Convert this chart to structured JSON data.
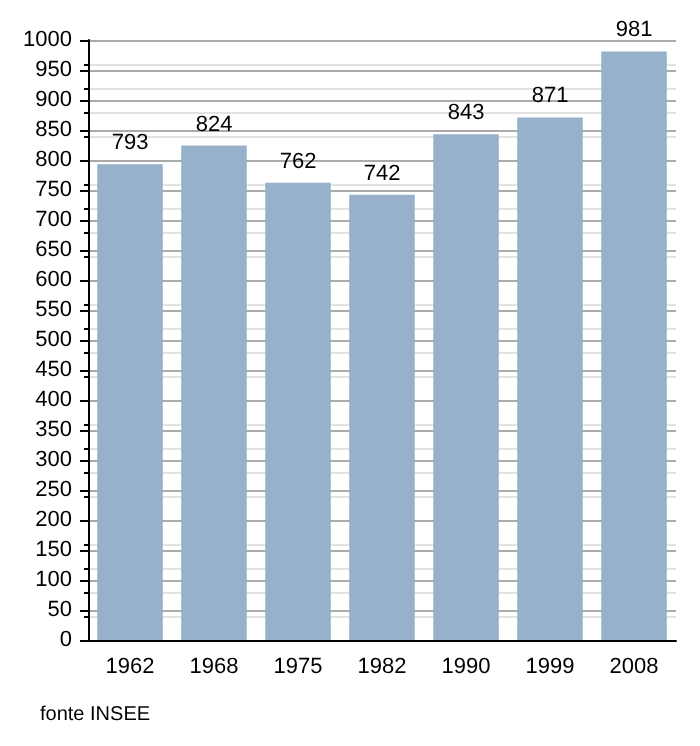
{
  "chart_data": {
    "type": "bar",
    "categories": [
      "1962",
      "1968",
      "1975",
      "1982",
      "1990",
      "1999",
      "2008"
    ],
    "values": [
      793,
      824,
      762,
      742,
      843,
      871,
      981
    ],
    "color": "#97b1cb",
    "data_labels": true,
    "ylim": [
      0,
      1000
    ],
    "yticks": [
      0,
      50,
      100,
      150,
      200,
      250,
      300,
      350,
      400,
      450,
      500,
      550,
      600,
      650,
      700,
      750,
      800,
      850,
      900,
      950,
      1000
    ],
    "grid": "y",
    "annotations": [
      "fonte INSEE"
    ]
  }
}
